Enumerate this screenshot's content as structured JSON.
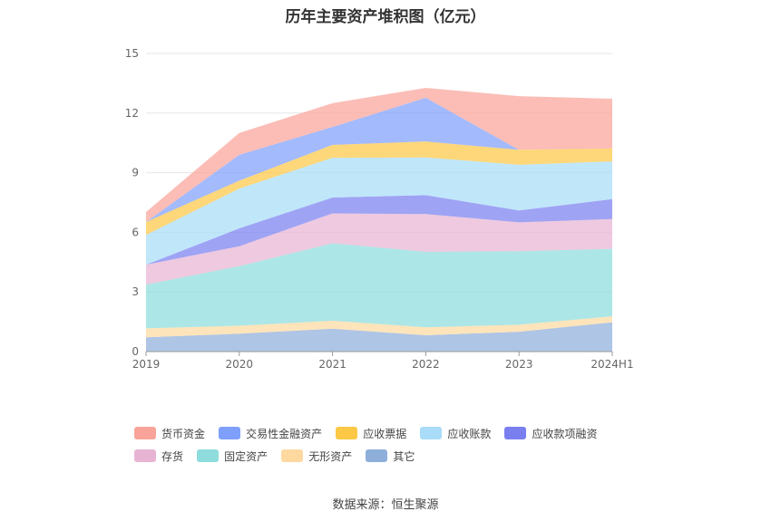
{
  "chart_data": {
    "type": "area",
    "stacked": true,
    "title": "历年主要资产堆积图（亿元）",
    "categories": [
      "2019",
      "2020",
      "2021",
      "2022",
      "2023",
      "2024H1"
    ],
    "ylim": [
      0,
      15
    ],
    "yticks": [
      "0",
      "3",
      "6",
      "9",
      "12",
      "15"
    ],
    "grid": true,
    "legend_position": "bottom",
    "series": [
      {
        "name": "其它",
        "color": "#8fafdb",
        "values": [
          0.72,
          0.9,
          1.15,
          0.82,
          1.0,
          1.47
        ]
      },
      {
        "name": "无形资产",
        "color": "#fdd9a0",
        "values": [
          0.45,
          0.4,
          0.4,
          0.4,
          0.35,
          0.3
        ]
      },
      {
        "name": "固定资产",
        "color": "#8edcdc",
        "values": [
          2.2,
          3.0,
          3.9,
          3.8,
          3.7,
          3.4
        ]
      },
      {
        "name": "存货",
        "color": "#e8b4d4",
        "values": [
          1.0,
          1.0,
          1.5,
          1.9,
          1.45,
          1.5
        ]
      },
      {
        "name": "应收款项融资",
        "color": "#7a7ff0",
        "values": [
          0.0,
          0.9,
          0.8,
          0.95,
          0.6,
          1.0
        ]
      },
      {
        "name": "应收账款",
        "color": "#a8dcf8",
        "values": [
          1.5,
          2.0,
          2.0,
          1.9,
          2.3,
          1.9
        ]
      },
      {
        "name": "应收票据",
        "color": "#fcc845",
        "values": [
          0.65,
          0.4,
          0.65,
          0.8,
          0.75,
          0.65
        ]
      },
      {
        "name": "交易性金融资产",
        "color": "#7f9ffc",
        "values": [
          0.0,
          1.3,
          0.9,
          2.2,
          0.0,
          0.0
        ]
      },
      {
        "name": "货币资金",
        "color": "#f9a39a",
        "values": [
          0.5,
          1.1,
          1.2,
          0.5,
          2.7,
          2.5
        ]
      }
    ],
    "source_note": "数据来源：恒生聚源"
  }
}
